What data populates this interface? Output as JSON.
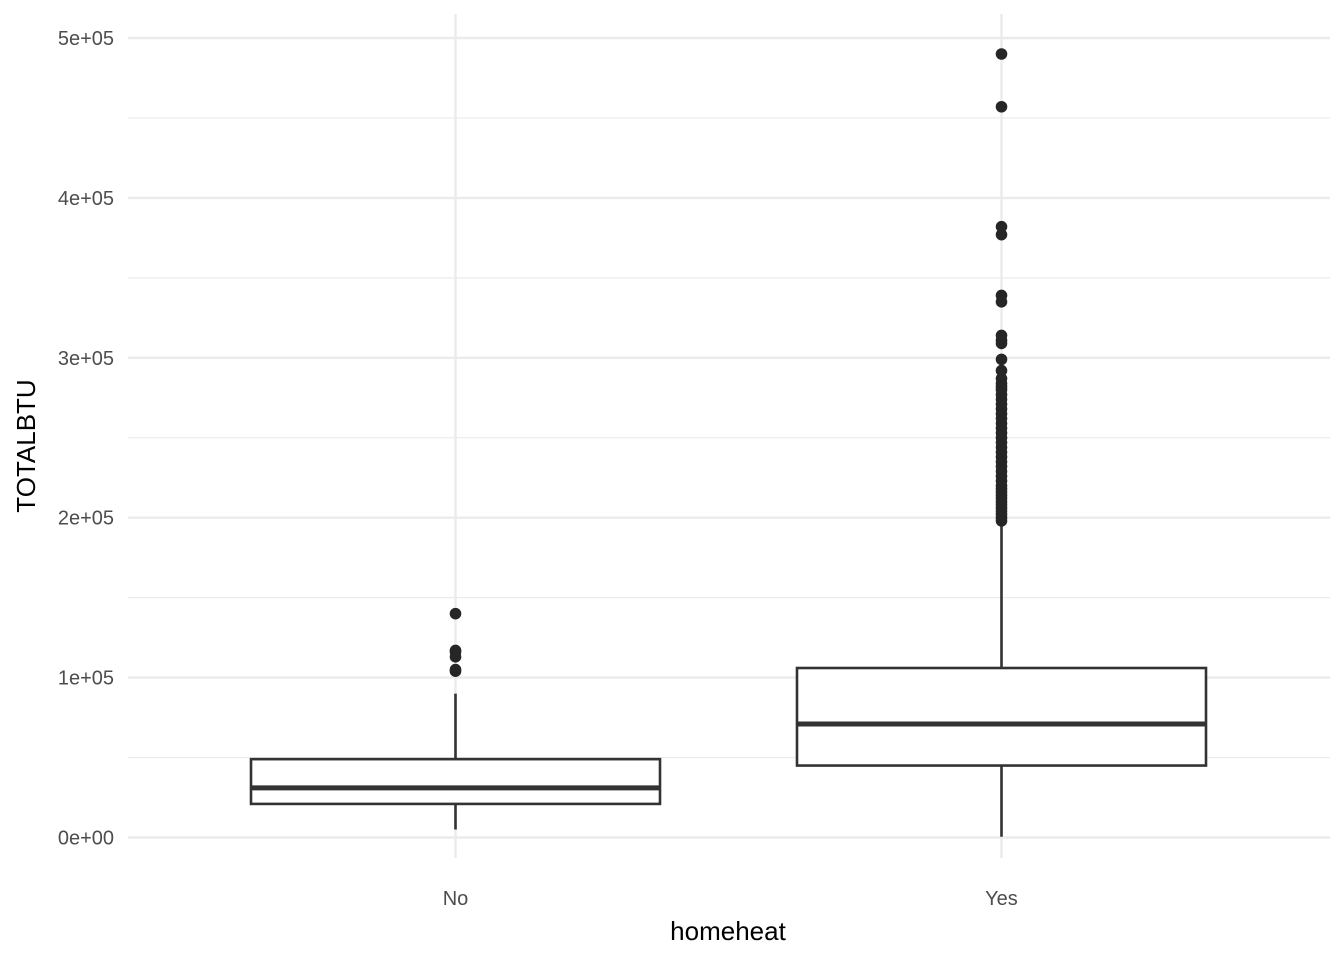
{
  "chart_data": {
    "type": "boxplot",
    "title": "",
    "xlabel": "homeheat",
    "ylabel": "TOTALBTU",
    "ylim": [
      -5000,
      515000
    ],
    "y_ticks": [
      {
        "value": 0,
        "label": "0e+00"
      },
      {
        "value": 100000,
        "label": "1e+05"
      },
      {
        "value": 200000,
        "label": "2e+05"
      },
      {
        "value": 300000,
        "label": "3e+05"
      },
      {
        "value": 400000,
        "label": "4e+05"
      },
      {
        "value": 500000,
        "label": "5e+05"
      }
    ],
    "y_minor_ticks": [
      50000,
      150000,
      250000,
      350000,
      450000
    ],
    "grid": true,
    "categories": [
      "No",
      "Yes"
    ],
    "boxes": [
      {
        "category": "No",
        "whisker_low": 5000,
        "q1": 21000,
        "median": 31000,
        "q3": 49000,
        "whisker_high": 90000,
        "outliers": [
          104000,
          105000,
          113000,
          116000,
          117000,
          140000
        ]
      },
      {
        "category": "Yes",
        "whisker_low": 500,
        "q1": 45000,
        "median": 71000,
        "q3": 106000,
        "whisker_high": 198000,
        "outliers": [
          198000,
          200000,
          202000,
          204000,
          206000,
          208000,
          210000,
          212000,
          214000,
          216000,
          218000,
          220000,
          223000,
          226000,
          229000,
          232000,
          235000,
          238000,
          241000,
          244000,
          247000,
          250000,
          253000,
          256000,
          259000,
          262000,
          265000,
          268000,
          271000,
          274000,
          277000,
          280000,
          282000,
          284000,
          287000,
          292000,
          299000,
          309000,
          311000,
          314000,
          335000,
          339000,
          377000,
          382000,
          457000,
          490000
        ]
      }
    ],
    "colors": {
      "box_stroke": "#333333",
      "outlier": "#262626",
      "grid": "#ebebeb",
      "background": "#ffffff"
    }
  }
}
